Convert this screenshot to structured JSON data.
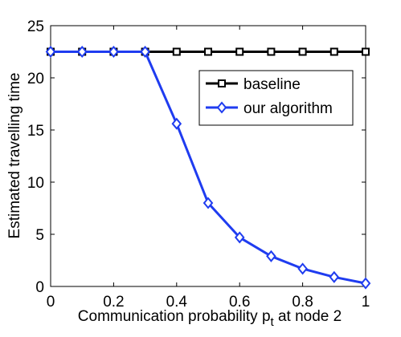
{
  "chart_data": {
    "type": "line",
    "x": [
      0,
      0.1,
      0.2,
      0.3,
      0.4,
      0.5,
      0.6,
      0.7,
      0.8,
      0.9,
      1.0
    ],
    "series": [
      {
        "name": "baseline",
        "color": "#000000",
        "marker": "square",
        "values": [
          22.5,
          22.5,
          22.5,
          22.5,
          22.5,
          22.5,
          22.5,
          22.5,
          22.5,
          22.5,
          22.5
        ]
      },
      {
        "name": "our algorithm",
        "color": "#1f3cf0",
        "marker": "diamond",
        "values": [
          22.5,
          22.5,
          22.5,
          22.5,
          15.6,
          8.0,
          4.7,
          2.9,
          1.7,
          0.9,
          0.3
        ]
      }
    ],
    "xlabel_main": "Communication probability p",
    "xlabel_sub": "t",
    "xlabel_suffix": " at node 2",
    "ylabel": "Estimated travelling time",
    "xlim": [
      0,
      1
    ],
    "ylim": [
      0,
      25
    ],
    "xticks": [
      0,
      0.2,
      0.4,
      0.6,
      0.8,
      1
    ],
    "xtick_labels": [
      "0",
      "0.2",
      "0.4",
      "0.6",
      "0.8",
      "1"
    ],
    "yticks": [
      0,
      5,
      10,
      15,
      20,
      25
    ],
    "ytick_labels": [
      "0",
      "5",
      "10",
      "15",
      "20",
      "25"
    ],
    "grid": false,
    "legend_position": "upper-right"
  }
}
